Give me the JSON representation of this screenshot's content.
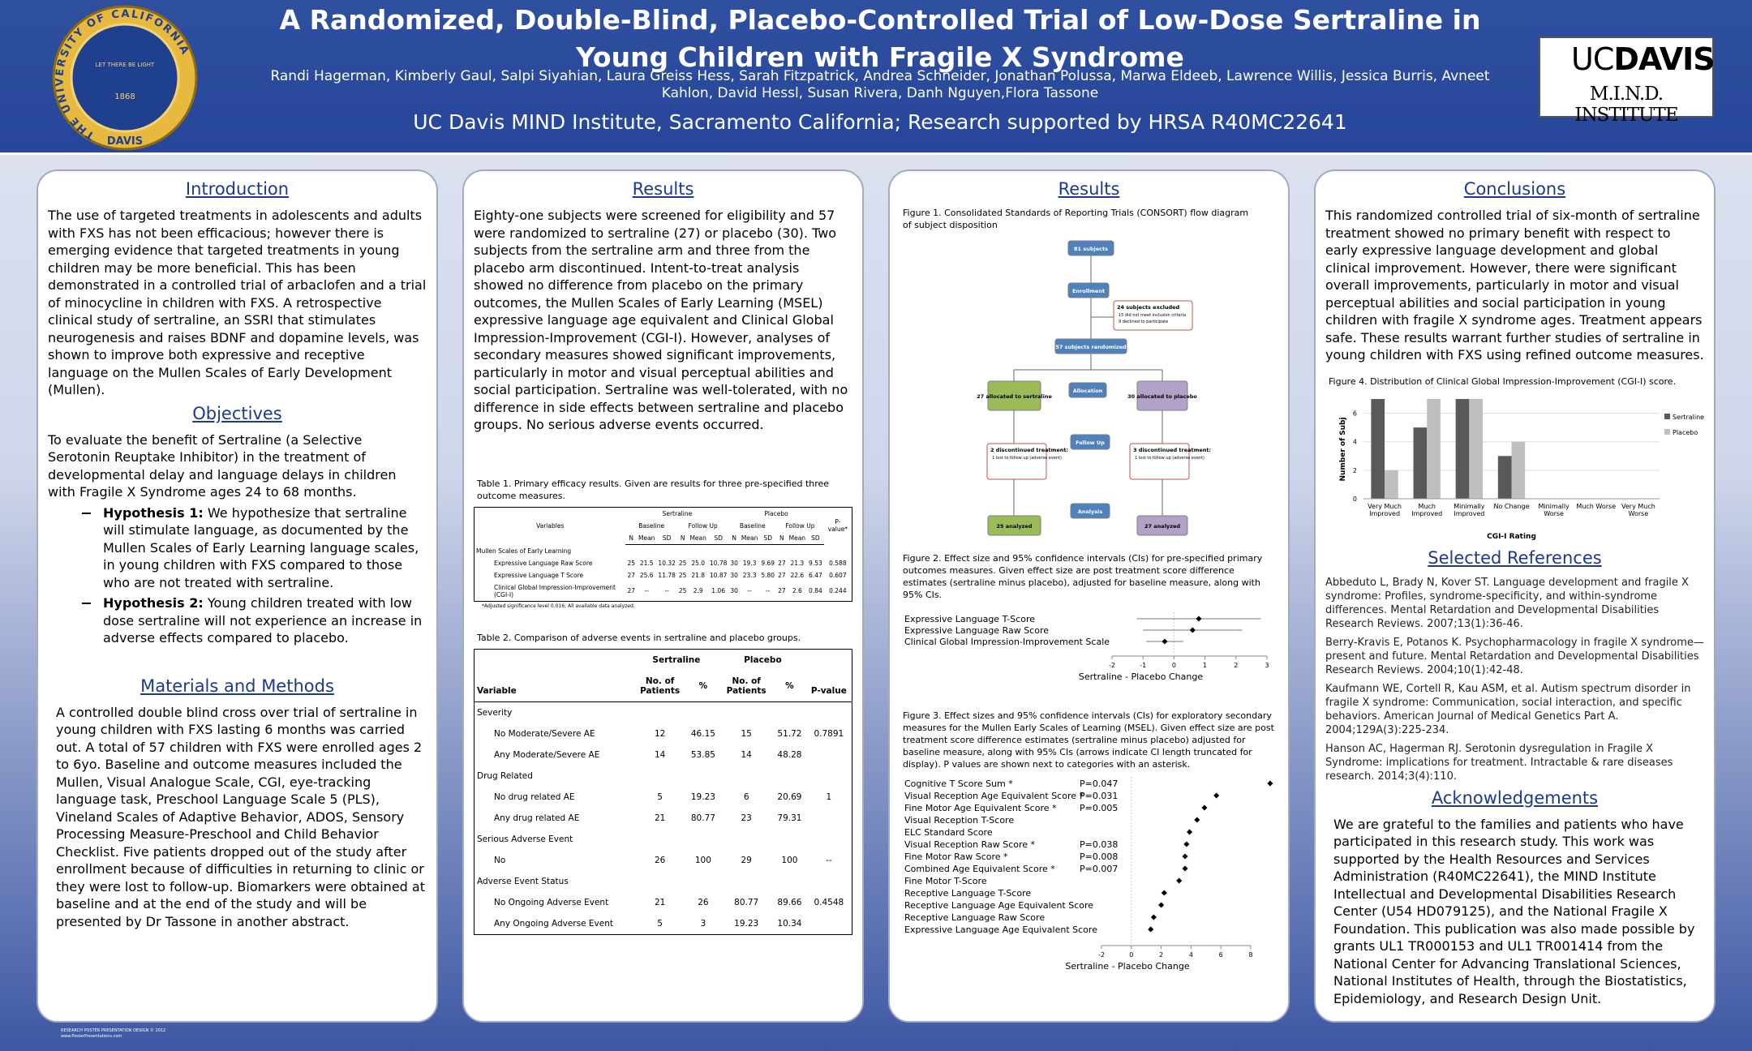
{
  "header": {
    "title": "A Randomized, Double-Blind, Placebo-Controlled Trial of Low-Dose Sertraline in Young Children with Fragile X Syndrome",
    "authors": "Randi Hagerman, Kimberly Gaul, Salpi Siyahian, Laura Greiss Hess, Sarah Fitzpatrick,  Andrea Schneider,   Jonathan Polussa, Marwa Eldeeb, Lawrence Willis, Jessica Burris, Avneet Kahlon, David Hessl, Susan Rivera, Danh Nguyen,Flora Tassone",
    "affiliation": "UC Davis MIND Institute, Sacramento California; Research supported by HRSA R40MC22641",
    "seal": {
      "ring": "THE UNIVERSITY OF CALIFORNIA",
      "bottom": "DAVIS",
      "motto": "LET THERE BE LIGHT",
      "year": "1868"
    },
    "logo": {
      "uc": "UC",
      "davis": "DAVIS",
      "institute": "M.I.N.D. INSTITUTE"
    }
  },
  "introduction": {
    "heading": "Introduction",
    "text": "The use of targeted treatments in adolescents and adults with FXS has not been efficacious; however there is emerging evidence that targeted treatments in young children may be more beneficial. This has been demonstrated in a controlled trial of arbaclofen and a trial of minocycline in children with FXS. A retrospective clinical study of sertraline, an SSRI that stimulates neurogenesis and raises BDNF and dopamine levels, was shown to improve both expressive and receptive language on the Mullen Scales of Early Development (Mullen)."
  },
  "objectives": {
    "heading": "Objectives",
    "text": "To evaluate the benefit of Sertraline (a Selective Serotonin Reuptake Inhibitor) in the treatment of developmental delay and language delays in children with Fragile X Syndrome ages 24 to 68 months.",
    "hypotheses": [
      {
        "label": "Hypothesis 1:",
        "text": "We hypothesize that sertraline will stimulate language, as documented by the Mullen Scales of Early Learning language scales, in young children with FXS compared to those who are not treated with sertraline."
      },
      {
        "label": "Hypothesis 2:",
        "text": "Young children treated with low dose sertraline will not experience an increase in adverse effects compared to placebo."
      }
    ]
  },
  "methods": {
    "heading": "Materials and Methods",
    "text": "A controlled double blind cross over trial of sertraline in young children with FXS lasting 6 months was carried out. A total of 57 children with FXS were enrolled ages 2 to 6yo. Baseline and outcome measures included the Mullen, Visual Analogue Scale, CGI, eye-tracking language task, Preschool Language Scale 5 (PLS), Vineland Scales of Adaptive Behavior, ADOS, Sensory Processing Measure-Preschool and  Child Behavior Checklist. Five patients dropped out of the study after enrollment because of difficulties in returning to clinic or they were lost to follow-up. Biomarkers were obtained at baseline and at the end of the study and will be presented by Dr Tassone in another abstract."
  },
  "results_text": {
    "heading": "Results",
    "text": "Eighty-one subjects were screened for eligibility and 57 were randomized to sertraline (27) or placebo (30). Two subjects from the sertraline arm and three from the placebo arm discontinued. Intent-to-treat analysis showed no difference from placebo on the primary outcomes, the Mullen Scales of Early Learning (MSEL) expressive language age equivalent and Clinical Global Impression-Improvement (CGI-I). However, analyses of secondary measures showed significant improvements, particularly in motor and visual perceptual abilities and social participation. Sertraline was well-tolerated, with no difference in side effects between sertraline and placebo groups. No serious adverse events occurred.",
    "table1": {
      "caption": "Table 1. Primary efficacy results. Given are results for three pre-specified three outcome measures.",
      "variable_header": "Variables",
      "groups": [
        "Sertraline",
        "Placebo"
      ],
      "subgroups": [
        "Baseline",
        "Follow Up"
      ],
      "columns": [
        "N",
        "Mean",
        "SD"
      ],
      "pvalue_header": "P-value*",
      "rows": [
        [
          "Mullen Scales of Early Learning"
        ],
        [
          "Expressive Language Raw Score",
          "25",
          "21.5",
          "10.32",
          "25",
          "25.0",
          "10.78",
          "30",
          "19.3",
          "9.69",
          "27",
          "21.3",
          "9.53",
          "0.588"
        ],
        [
          "Expressive Language T Score",
          "27",
          "25.6",
          "11.78",
          "25",
          "21.8",
          "10.87",
          "30",
          "23.3",
          "5.80",
          "27",
          "22.6",
          "6.47",
          "0.607"
        ],
        [
          "Clinical Global Impression-Improvement (CGI-I)",
          "27",
          "--",
          "--",
          "25",
          "2.9",
          "1.06",
          "30",
          "--",
          "--",
          "27",
          "2.6",
          "0.84",
          "0.244"
        ]
      ],
      "footnote": "*Adjusted significance level 0.016; All available data analyzed."
    },
    "table2": {
      "caption": "Table 2. Comparison of adverse events in sertraline and placebo groups.",
      "variable_header": "Variable",
      "groups": [
        "Sertraline",
        "Placebo"
      ],
      "subheaders": [
        "No. of Patients",
        "%"
      ],
      "pvalue_header": "P-value",
      "rows": [
        [
          "Severity"
        ],
        [
          "No Moderate/Severe AE",
          "12",
          "46.15",
          "15",
          "51.72",
          "0.7891"
        ],
        [
          "Any Moderate/Severe AE",
          "14",
          "53.85",
          "14",
          "48.28"
        ],
        [
          "Drug Related"
        ],
        [
          "No drug related AE",
          "5",
          "19.23",
          "6",
          "20.69",
          "1"
        ],
        [
          "Any drug related AE",
          "21",
          "80.77",
          "23",
          "79.31"
        ],
        [
          "Serious Adverse Event"
        ],
        [
          "No",
          "26",
          "100",
          "29",
          "100",
          "--"
        ],
        [
          "Adverse Event Status"
        ],
        [
          "No Ongoing Adverse Event",
          "21",
          "26",
          "80.77",
          "89.66",
          "0.4548"
        ],
        [
          "Any Ongoing Adverse Event",
          "5",
          "3",
          "19.23",
          "10.34"
        ]
      ]
    }
  },
  "results_figures": {
    "heading": "Results",
    "figure1": {
      "caption": "Figure 1. Consolidated Standards of Reporting Trials (CONSORT) flow diagram of subject disposition",
      "nodes": [
        {
          "label": "81 subjects"
        },
        {
          "label": "Enrollment"
        },
        {
          "label": "24 subjects excluded",
          "details": [
            "15 did not meet inclusion criteria",
            "9 declined to participate"
          ]
        },
        {
          "label": "57 subjects randomized"
        },
        {
          "label": "Allocation"
        },
        {
          "label": "27 allocated to sertraline"
        },
        {
          "label": "30 allocated to placebo"
        },
        {
          "label": "Follow Up"
        },
        {
          "label": "2 discontinued treatment:",
          "details": [
            "1 lost to follow up (adverse event)"
          ]
        },
        {
          "label": "3 discontinued treatment:",
          "details": [
            "1 lost to follow up (adverse event)"
          ]
        },
        {
          "label": "Analysis"
        },
        {
          "label": "25 analyzed"
        },
        {
          "label": "27 analyzed"
        }
      ]
    },
    "figure2": {
      "caption": "Figure 2. Effect size and 95% confidence intervals (CIs) for pre-specified primary outcomes measures. Given effect size are post treatment score difference estimates (sertraline minus placebo), adjusted for baseline measure, along with 95% CIs.",
      "labels": [
        "Expressive Language T-Score",
        "Expressive Language Raw Score",
        "Clinical Global Impression-Improvement Scale"
      ],
      "values": [
        0.8,
        0.6,
        -0.3
      ],
      "lower": [
        -1.2,
        -1.0,
        -0.9
      ],
      "upper": [
        2.8,
        2.2,
        0.3
      ],
      "xlim": [
        -2,
        3
      ],
      "xticks": [
        -2,
        -1,
        0,
        1,
        2,
        3
      ],
      "x_label": "Sertraline - Placebo Change"
    },
    "figure3": {
      "caption": "Figure 3. Effect sizes and 95% confidence intervals (CIs) for exploratory secondary measures for the Mullen Early Scales of Learning (MSEL). Given effect size are post treatment score difference estimates (sertraline minus placebo) adjusted for baseline measure, along with 95% CIs (arrows indicate CI length truncated for display). P values are shown next to categories with an asterisk.",
      "labels": [
        "Cognitive T Score Sum *",
        "Visual Reception Age Equivalent Score *",
        "Fine Motor Age Equivalent Score *",
        "Visual Reception T-Score",
        "ELC Standard Score",
        "Visual Reception Raw Score *",
        "Fine Motor Raw Score *",
        "Combined Age Equivalent Score *",
        "Fine Motor T-Score",
        "Receptive Language T-Score",
        "Receptive Language Age Equivalent Score",
        "Receptive Language Raw Score",
        "Expressive Language Age Equivalent Score"
      ],
      "p_labels": [
        "P=0.047",
        "P=0.031",
        "P=0.005",
        null,
        null,
        "P=0.038",
        "P=0.008",
        "P=0.007",
        null,
        null,
        null,
        null,
        null
      ],
      "values": [
        9.3,
        5.7,
        4.9,
        4.4,
        3.9,
        3.7,
        3.6,
        3.6,
        3.2,
        2.2,
        2.0,
        1.5,
        1.3
      ],
      "xlim": [
        -2,
        8
      ],
      "xticks": [
        -2,
        0,
        2,
        4,
        6,
        8
      ],
      "x_label": "Sertraline - Placebo Change"
    }
  },
  "conclusions": {
    "heading": "Conclusions",
    "text": "This randomized controlled trial of six-month of sertraline treatment showed no primary benefit with respect to early expressive language development and global clinical improvement. However, there were significant overall improvements, particularly in motor and visual perceptual abilities and social participation in young children with fragile X syndrome ages. Treatment appears safe. These results warrant further studies of sertraline in young children with FXS using refined outcome measures.",
    "figure4": {
      "caption": "Figure 4. Distribution of Clinical Global Impression-Improvement (CGI-I) score.",
      "type": "bar",
      "categories": [
        "Very Much Improved",
        "Much Improved",
        "Minimally Improved",
        "No Change",
        "Minimally Worse",
        "Much Worse",
        "Very Much Worse"
      ],
      "series": [
        {
          "name": "Sertraline",
          "color": "#595959",
          "values": [
            7,
            5,
            7,
            3,
            0,
            0,
            0
          ]
        },
        {
          "name": "Placebo",
          "color": "#bfbfbf",
          "values": [
            2,
            7,
            7,
            4,
            0,
            0,
            0
          ]
        }
      ],
      "ylim": [
        0,
        7
      ],
      "yticks": [
        0,
        2,
        4,
        6
      ],
      "y_label": "Number of Subj",
      "x_label": "CGI-I Rating",
      "grid": true,
      "legend": "right"
    }
  },
  "references": {
    "heading": "Selected References",
    "items": [
      "Abbeduto L, Brady N, Kover ST. Language development and fragile X syndrome: Profiles, syndrome-specificity, and within-syndrome differences. Mental Retardation and Developmental Disabilities Research Reviews. 2007;13(1):36-46.",
      "Berry-Kravis E, Potanos K. Psychopharmacology in fragile X syndrome—present and future. Mental Retardation and Developmental Disabilities Research Reviews. 2004;10(1):42-48.",
      "Kaufmann WE, Cortell R, Kau ASM, et al. Autism spectrum disorder in fragile X syndrome: Communication, social interaction, and specific behaviors. American Journal of Medical Genetics Part A. 2004;129A(3):225-234.",
      "Hanson AC, Hagerman RJ. Serotonin dysregulation in Fragile X Syndrome: implications for treatment. Intractable & rare diseases research. 2014;3(4):110."
    ]
  },
  "acknowledgements": {
    "heading": "Acknowledgements",
    "text": "We are grateful to the families and patients who have participated in this research study. This work was supported by the Health Resources and Services Administration (R40MC22641), the MIND Institute Intellectual and Developmental Disabilities Research Center (U54 HD079125), and the National Fragile X Foundation. This publication was also made possible by grants UL1 TR000153 and UL1 TR001414 from the National Center for Advancing Translational Sciences, National Institutes of Health, through the Biostatistics, Epidemiology, and Research Design Unit."
  },
  "footer": [
    "RESEARCH POSTER PRESENTATION DESIGN © 2012",
    "www.PosterPresentations.com"
  ]
}
